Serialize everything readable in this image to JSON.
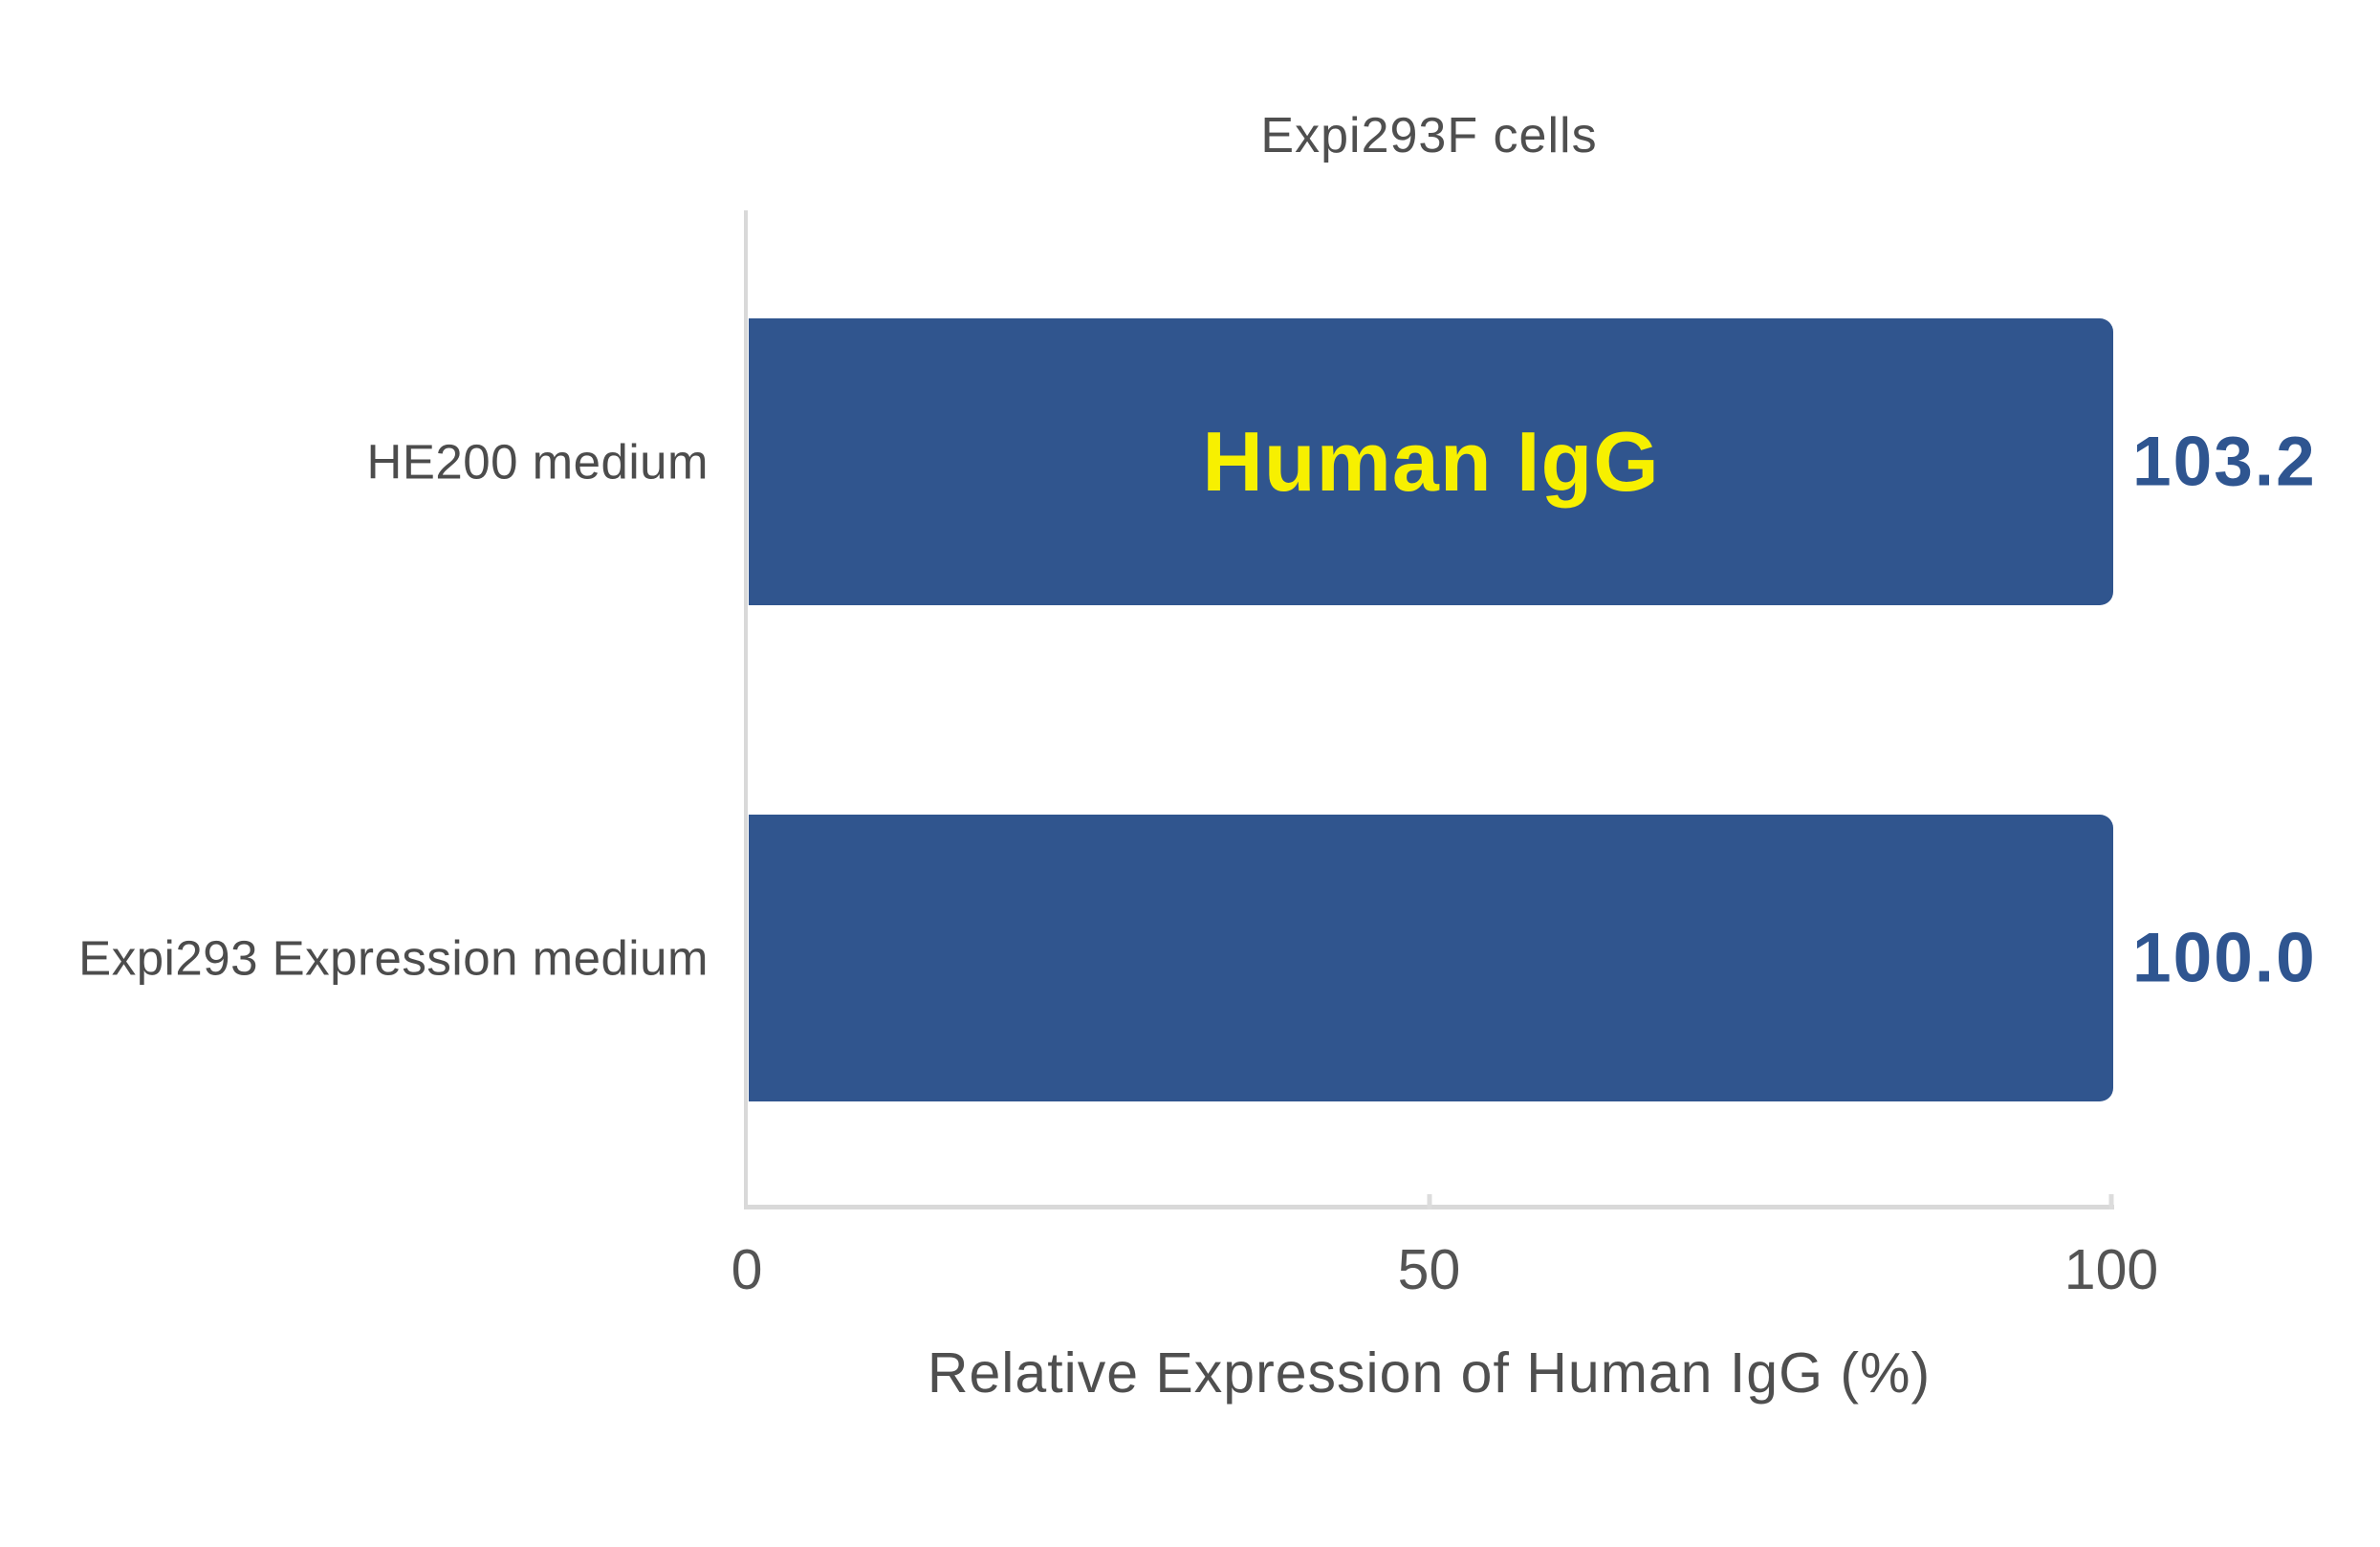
{
  "chart_data": {
    "type": "bar",
    "orientation": "horizontal",
    "title": "Expi293F cells",
    "categories": [
      "HE200 medium",
      "Expi293 Expression medium"
    ],
    "values": [
      103.2,
      100.0
    ],
    "value_labels": [
      "103.2",
      "100.0"
    ],
    "bar_annotation": {
      "text": "Human IgG",
      "row": 0
    },
    "xlabel": "Relative Expression of Human IgG (%)",
    "x_tick_labels": [
      "0",
      "50",
      "100"
    ],
    "xlim": [
      0,
      100
    ],
    "grid": false,
    "legend": "none",
    "colors": {
      "bar": "#30558e",
      "value_label": "#2f5590",
      "annotation": "#f7f000",
      "axis_line": "#d9d9d9",
      "text": "#4f4f4f"
    }
  }
}
